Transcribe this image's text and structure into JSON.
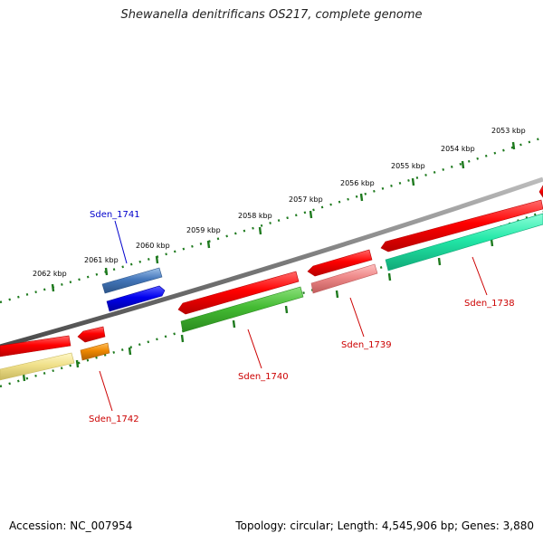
{
  "title": "Shewanella denitrificans OS217, complete genome",
  "footer": {
    "accession": "Accession: NC_007954",
    "summary": "Topology: circular; Length: 4,545,906 bp; Genes: 3,880"
  },
  "colors": {
    "backbone": "#7a7a7a",
    "tick": "#1e7a1e",
    "reverse_strand": "#ff0000",
    "label_red": "#cc0000",
    "label_blue": "#0000cc"
  },
  "ruler_labels": [
    "2053 kbp",
    "2054 kbp",
    "2055 kbp",
    "2056 kbp",
    "2057 kbp",
    "2058 kbp",
    "2059 kbp",
    "2060 kbp",
    "2061 kbp",
    "2062 kbp"
  ],
  "genes": [
    {
      "name": "Sden_1738",
      "label_color": "#cc0000",
      "feature_color": "#22e8a8"
    },
    {
      "name": "Sden_1739",
      "label_color": "#cc0000",
      "feature_color": "#ee8888"
    },
    {
      "name": "Sden_1740",
      "label_color": "#cc0000",
      "feature_color": "#44bb33"
    },
    {
      "name": "Sden_1741",
      "label_color": "#0000cc",
      "feature_color": "#4477bb"
    },
    {
      "name": "Sden_1742",
      "label_color": "#cc0000",
      "feature_color": "#ee8800"
    }
  ]
}
